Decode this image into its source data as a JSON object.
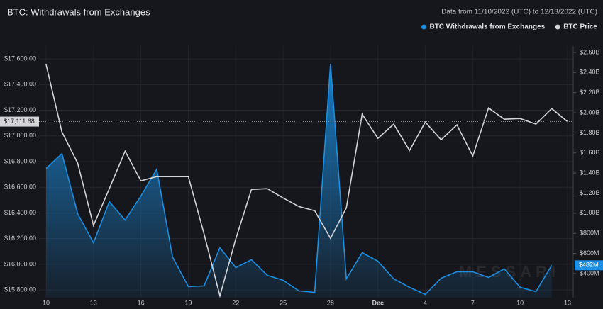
{
  "chart_data": {
    "type": "line",
    "title": "BTC: Withdrawals from Exchanges",
    "subtitle": "Data from 11/10/2022 (UTC) to 12/13/2022 (UTC)",
    "watermark": "MESSARI",
    "categories": [
      "10",
      null,
      null,
      "13",
      null,
      null,
      "16",
      null,
      null,
      "19",
      null,
      null,
      "22",
      null,
      null,
      "25",
      null,
      null,
      "28",
      null,
      null,
      "Dec",
      null,
      null,
      "4",
      null,
      null,
      "7",
      null,
      null,
      "10",
      null,
      null,
      "13"
    ],
    "series": [
      {
        "name": "BTC Withdrawals from Exchanges",
        "color": "#1a8fe3",
        "axis": "y2",
        "fill": true,
        "values": [
          1445,
          1593,
          995,
          706,
          1115,
          931,
          1171,
          1438,
          565,
          270,
          277,
          657,
          460,
          537,
          382,
          333,
          227,
          213,
          2487,
          347,
          608,
          523,
          347,
          263,
          192,
          354,
          418,
          418,
          361,
          446,
          263,
          220,
          482,
          null
        ],
        "last_label": "$482M"
      },
      {
        "name": "BTC Price",
        "color": "#d4d4d8",
        "axis": "y",
        "values": [
          17556,
          17031,
          16788,
          16302,
          16589,
          16882,
          16650,
          16683,
          16683,
          16683,
          16235,
          15754,
          16197,
          16583,
          16589,
          16517,
          16450,
          16417,
          16202,
          16439,
          17169,
          16981,
          17092,
          16887,
          17108,
          16970,
          17086,
          16843,
          17218,
          17130,
          17136,
          17092,
          17213,
          17111.68
        ],
        "last_label": "$17,111.68"
      }
    ],
    "ylim": [
      15740,
      17700
    ],
    "yticks": [
      {
        "value": 15800,
        "label": "$15,800.00"
      },
      {
        "value": 16000,
        "label": "$16,000.00"
      },
      {
        "value": 16200,
        "label": "$16,200.00"
      },
      {
        "value": 16400,
        "label": "$16,400.00"
      },
      {
        "value": 16600,
        "label": "$16,600.00"
      },
      {
        "value": 16800,
        "label": "$16,800.00"
      },
      {
        "value": 17000,
        "label": "$17,000.00"
      },
      {
        "value": 17200,
        "label": "$17,200.00"
      },
      {
        "value": 17400,
        "label": "$17,400.00"
      },
      {
        "value": 17600,
        "label": "$17,600.00"
      }
    ],
    "y2lim": [
      160,
      2663
    ],
    "y2ticks": [
      {
        "value": 400,
        "label": "$400M"
      },
      {
        "value": 600,
        "label": "$600M"
      },
      {
        "value": 800,
        "label": "$800M"
      },
      {
        "value": 1000,
        "label": "$1.00B"
      },
      {
        "value": 1200,
        "label": "$1.20B"
      },
      {
        "value": 1400,
        "label": "$1.40B"
      },
      {
        "value": 1600,
        "label": "$1.60B"
      },
      {
        "value": 1800,
        "label": "$1.80B"
      },
      {
        "value": 2000,
        "label": "$2.00B"
      },
      {
        "value": 2200,
        "label": "$2.20B"
      },
      {
        "value": 2400,
        "label": "$2.40B"
      },
      {
        "value": 2600,
        "label": "$2.60B"
      }
    ],
    "grid": true,
    "legend": "top-right"
  }
}
